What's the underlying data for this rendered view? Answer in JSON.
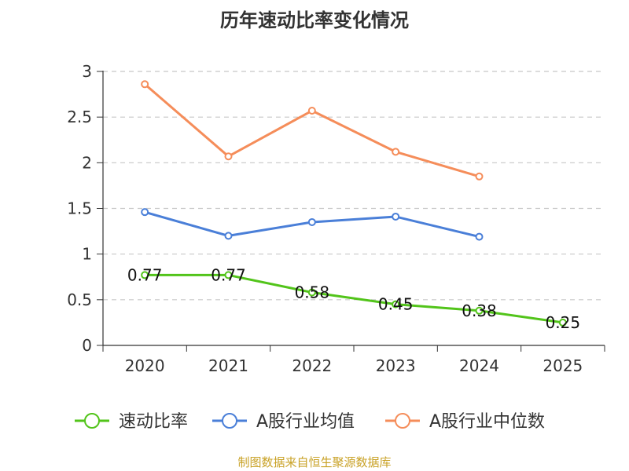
{
  "chart_data": {
    "type": "line",
    "title": "历年速动比率变化情况",
    "categories": [
      "2020",
      "2021",
      "2022",
      "2023",
      "2024",
      "2025"
    ],
    "ylim": [
      0,
      3
    ],
    "yticks": [
      "0",
      "0.5",
      "1",
      "1.5",
      "2",
      "2.5",
      "3"
    ],
    "ytick_values": [
      0,
      0.5,
      1,
      1.5,
      2,
      2.5,
      3
    ],
    "grid": true,
    "legend_position": "bottom",
    "series": [
      {
        "name": "速动比率",
        "color": "#52c41a",
        "values": [
          0.77,
          0.77,
          0.58,
          0.45,
          0.38,
          0.25
        ],
        "labels": [
          "0.77",
          "0.77",
          "0.58",
          "0.45",
          "0.38",
          "0.25"
        ]
      },
      {
        "name": "A股行业均值",
        "color": "#4a7fd8",
        "values": [
          1.46,
          1.2,
          1.35,
          1.41,
          1.19,
          null
        ]
      },
      {
        "name": "A股行业中位数",
        "color": "#f58d5a",
        "values": [
          2.86,
          2.07,
          2.57,
          2.12,
          1.85,
          null
        ]
      }
    ]
  },
  "source": "制图数据来自恒生聚源数据库"
}
